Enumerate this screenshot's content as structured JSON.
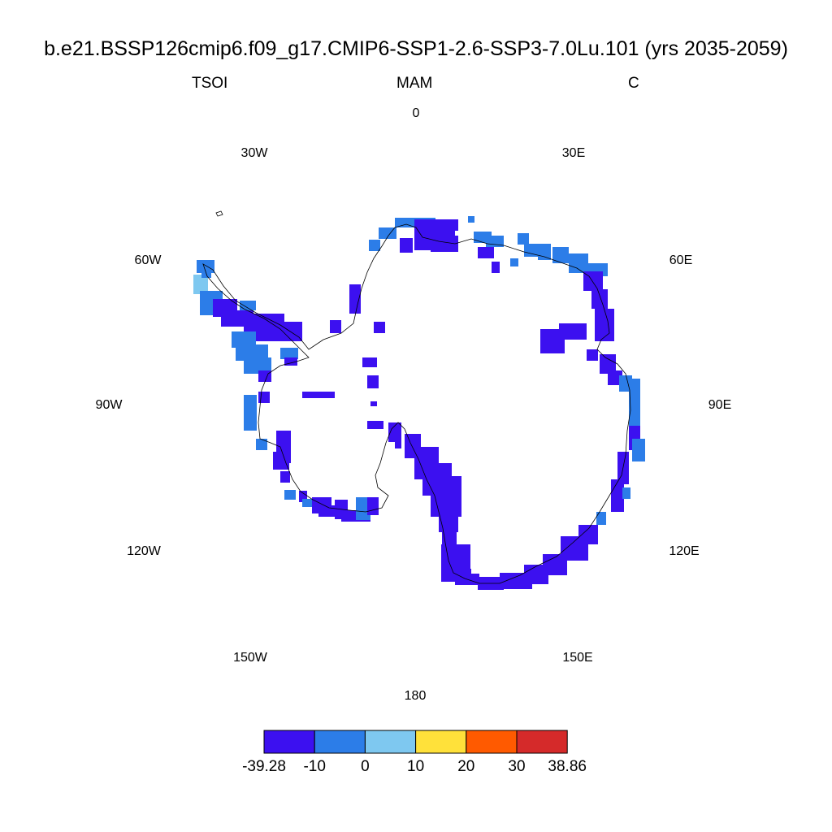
{
  "title": "b.e21.BSSP126cmip6.f09_g17.CMIP6-SSP1-2.6-SSP3-7.0Lu.101 (yrs 2035-2059)",
  "subtitles": {
    "left": "TSOI",
    "center": "MAM",
    "right": "C"
  },
  "longitude_labels": [
    "0",
    "30E",
    "60E",
    "90E",
    "120E",
    "150E",
    "180",
    "150W",
    "120W",
    "90W",
    "60W",
    "30W"
  ],
  "colorbar": {
    "labels": [
      "-39.28",
      "-10",
      "0",
      "10",
      "20",
      "30",
      "38.86"
    ],
    "colors": [
      "#3c10f0",
      "#2c7de8",
      "#7ec8f0",
      "#ffe13a",
      "#ff5a00",
      "#d52a2a"
    ]
  },
  "map": {
    "projection": "south polar stereographic",
    "center": "South Pole",
    "field": "TSOI",
    "dominant_class": "-39.28 to -10",
    "coastal_classes": [
      "-10 to 0",
      "0 to 10"
    ]
  }
}
